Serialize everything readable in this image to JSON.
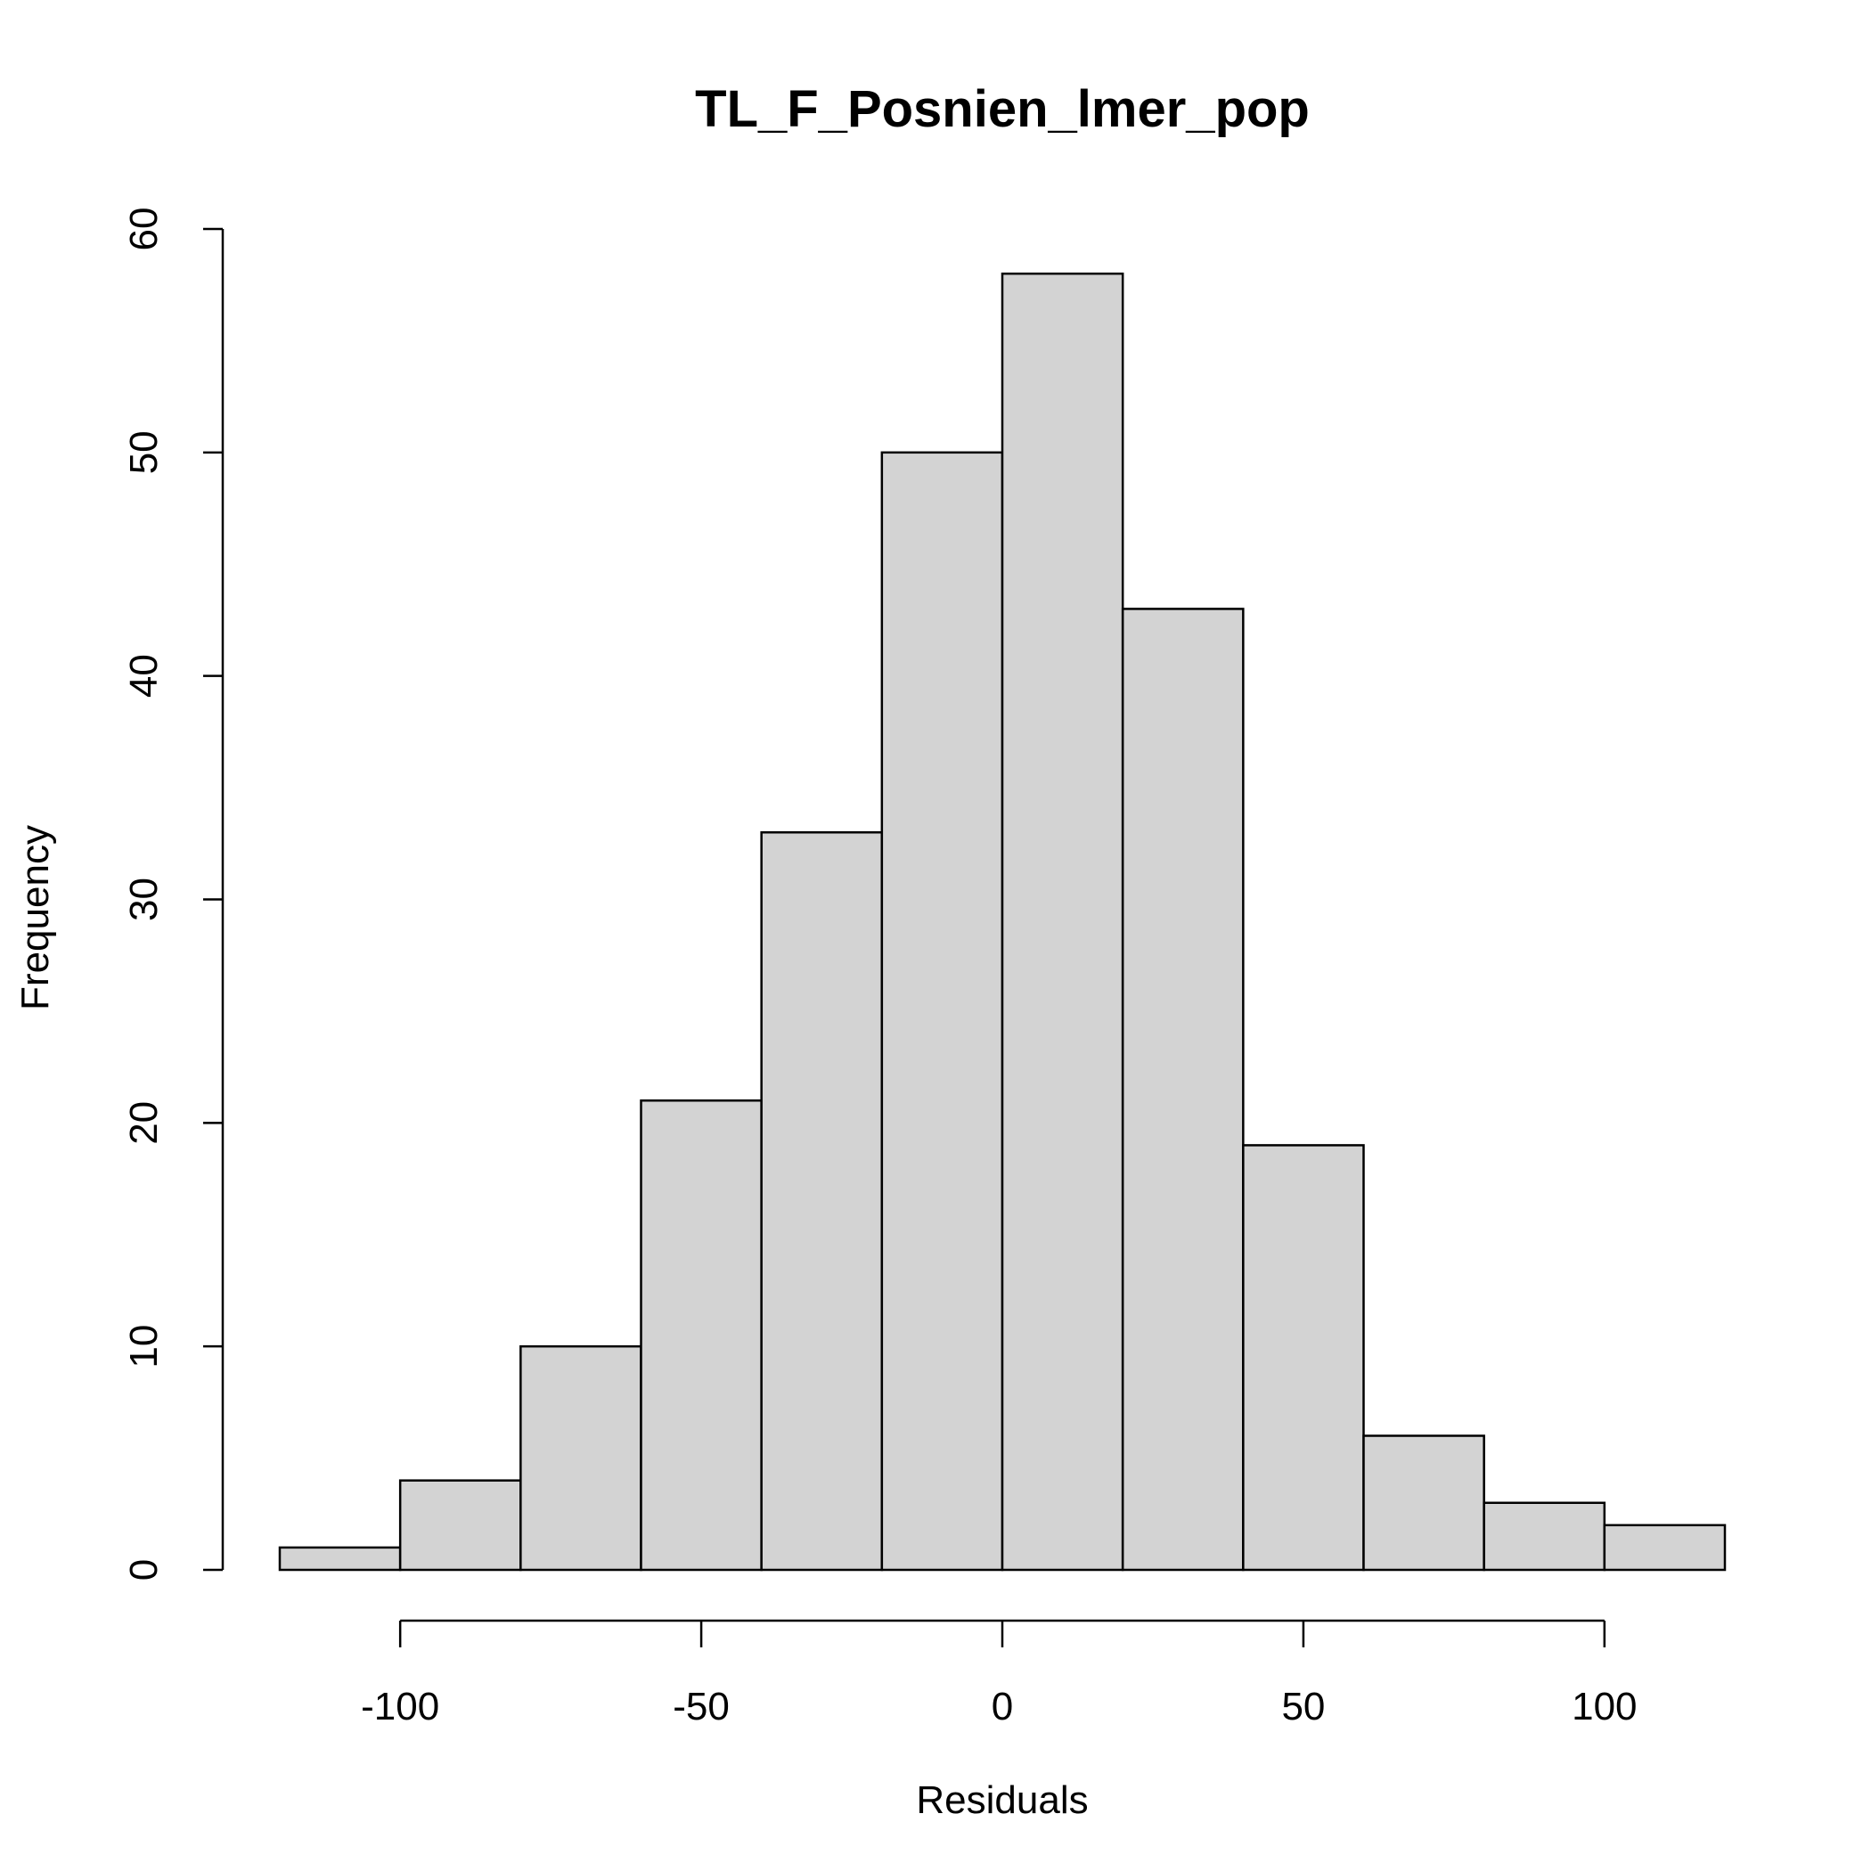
{
  "chart_data": {
    "type": "bar",
    "subtype": "histogram",
    "title": "TL_F_Posnien_lmer_pop",
    "xlabel": "Residuals",
    "ylabel": "Frequency",
    "bin_edges": [
      -120,
      -100,
      -80,
      -60,
      -40,
      -20,
      0,
      20,
      40,
      60,
      80,
      100,
      120
    ],
    "values": [
      1,
      4,
      10,
      21,
      33,
      50,
      58,
      43,
      19,
      6,
      3,
      2
    ],
    "xlim": [
      -120,
      120
    ],
    "ylim": [
      0,
      60
    ],
    "x_ticks": [
      -100,
      -50,
      0,
      50,
      100
    ],
    "x_tick_labels": [
      "-100",
      "-50",
      "0",
      "50",
      "100"
    ],
    "y_ticks": [
      0,
      10,
      20,
      30,
      40,
      50,
      60
    ],
    "y_tick_labels": [
      "0",
      "10",
      "20",
      "30",
      "40",
      "50",
      "60"
    ],
    "bar_fill": "#d3d3d3",
    "bar_stroke": "#000000",
    "grid": false,
    "legend": "none"
  }
}
